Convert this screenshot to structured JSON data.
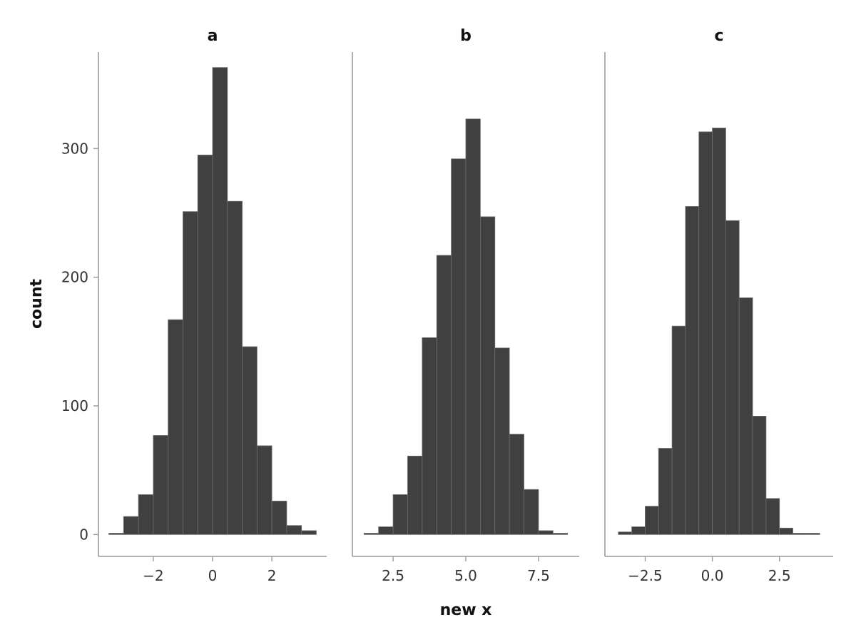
{
  "chart_data": {
    "type": "bar",
    "subtype": "faceted-histogram",
    "xlabel": "new x",
    "ylabel": "count",
    "ylim": [
      -17,
      375
    ],
    "y_ticks": [
      0,
      100,
      200,
      300
    ],
    "grid": false,
    "bar_color": "#404040",
    "axis_color": "#9a9a9a",
    "facets": [
      {
        "title": "a",
        "xlim": [
          -3.85,
          3.85
        ],
        "x_ticks": [
          {
            "value": -2,
            "label": "−2"
          },
          {
            "value": 0,
            "label": "0"
          },
          {
            "value": 2,
            "label": "2"
          }
        ],
        "bin_edges": [
          -3.5,
          -3.0,
          -2.5,
          -2.0,
          -1.5,
          -1.0,
          -0.5,
          0.0,
          0.5,
          1.0,
          1.5,
          2.0,
          2.5,
          3.0,
          3.5
        ],
        "values": [
          1,
          14,
          31,
          77,
          167,
          251,
          295,
          363,
          259,
          146,
          69,
          26,
          7,
          3
        ]
      },
      {
        "title": "b",
        "xlim": [
          1.1,
          8.9
        ],
        "x_ticks": [
          {
            "value": 2.5,
            "label": "2.5"
          },
          {
            "value": 5.0,
            "label": "5.0"
          },
          {
            "value": 7.5,
            "label": "7.5"
          }
        ],
        "bin_edges": [
          1.5,
          2.0,
          2.5,
          3.0,
          3.5,
          4.0,
          4.5,
          5.0,
          5.5,
          6.0,
          6.5,
          7.0,
          7.5,
          8.0,
          8.5
        ],
        "values": [
          1,
          6,
          31,
          61,
          153,
          217,
          292,
          323,
          247,
          145,
          78,
          35,
          3,
          1
        ]
      },
      {
        "title": "c",
        "xlim": [
          -4.0,
          4.5
        ],
        "x_ticks": [
          {
            "value": -2.5,
            "label": "−2.5"
          },
          {
            "value": 0.0,
            "label": "0.0"
          },
          {
            "value": 2.5,
            "label": "2.5"
          }
        ],
        "bin_edges": [
          -3.5,
          -3.0,
          -2.5,
          -2.0,
          -1.5,
          -1.0,
          -0.5,
          0.0,
          0.5,
          1.0,
          1.5,
          2.0,
          2.5,
          3.0,
          3.5,
          4.0
        ],
        "values": [
          2,
          6,
          22,
          67,
          162,
          255,
          313,
          316,
          244,
          184,
          92,
          28,
          5,
          1,
          1
        ]
      }
    ]
  }
}
